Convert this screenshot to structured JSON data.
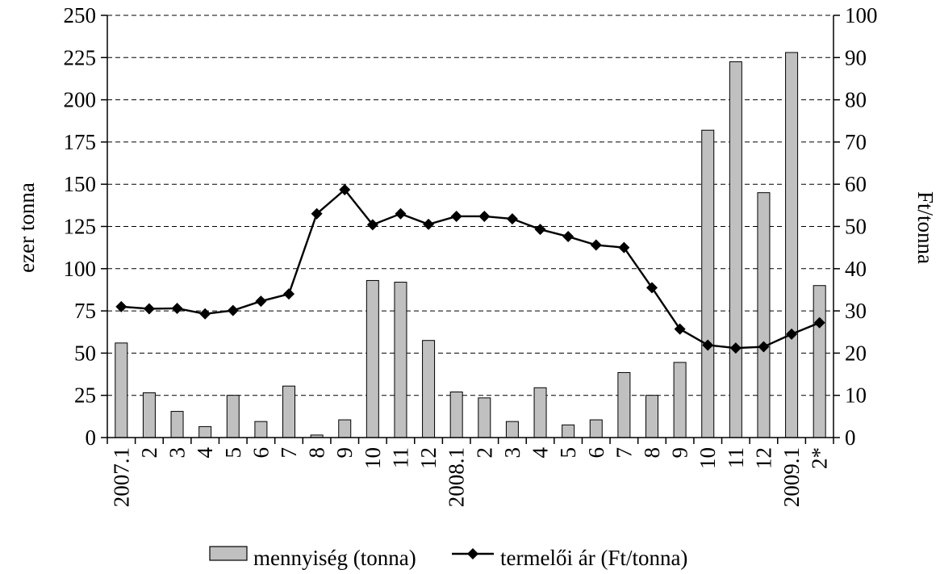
{
  "chart_data": {
    "type": "bar",
    "categories": [
      "2007.1",
      "2",
      "3",
      "4",
      "5",
      "6",
      "7",
      "8",
      "9",
      "10",
      "11",
      "12",
      "2008.1",
      "2",
      "3",
      "4",
      "5",
      "6",
      "7",
      "8",
      "9",
      "10",
      "11",
      "12",
      "2009.1",
      "2*"
    ],
    "series": [
      {
        "name": "mennyiség (tonna)",
        "type": "bar",
        "axis": "left",
        "color": "#c0c0c0",
        "values": [
          56,
          26.5,
          15.5,
          6.5,
          25,
          9.5,
          30.5,
          1.5,
          10.5,
          93,
          92,
          57.5,
          27,
          23.5,
          9.5,
          29.5,
          7.5,
          10.5,
          38.5,
          25,
          44.5,
          182,
          222.5,
          145,
          228,
          90
        ]
      },
      {
        "name": "termelői ár (Ft/tonna)",
        "type": "line",
        "axis": "right",
        "color": "#000000",
        "marker": "diamond",
        "values": [
          31,
          30.5,
          30.6,
          29.3,
          30.1,
          32.3,
          34,
          53,
          58.7,
          50.4,
          53,
          50.5,
          52.4,
          52.4,
          51.8,
          49.3,
          47.6,
          45.6,
          45,
          35.5,
          25.7,
          21.9,
          21.2,
          21.5,
          24.5,
          27.2
        ]
      }
    ],
    "y_left": {
      "label": "ezer tonna",
      "range": [
        0,
        250
      ],
      "ticks": [
        "0",
        "25",
        "50",
        "75",
        "100",
        "125",
        "150",
        "175",
        "200",
        "225",
        "250"
      ]
    },
    "y_right": {
      "label": "Ft/tonna",
      "range": [
        0,
        100
      ],
      "ticks": [
        "0",
        "10",
        "20",
        "30",
        "40",
        "50",
        "60",
        "70",
        "80",
        "90",
        "100"
      ]
    },
    "grid": "horizontal dashed",
    "legend_position": "bottom"
  },
  "legend": {
    "bar_label": "mennyiség (tonna)",
    "line_label": "termelői ár (Ft/tonna)"
  },
  "colors": {
    "bar_fill": "#c0c0c0",
    "bar_stroke": "#000000",
    "line": "#000000",
    "grid": "#000000"
  }
}
